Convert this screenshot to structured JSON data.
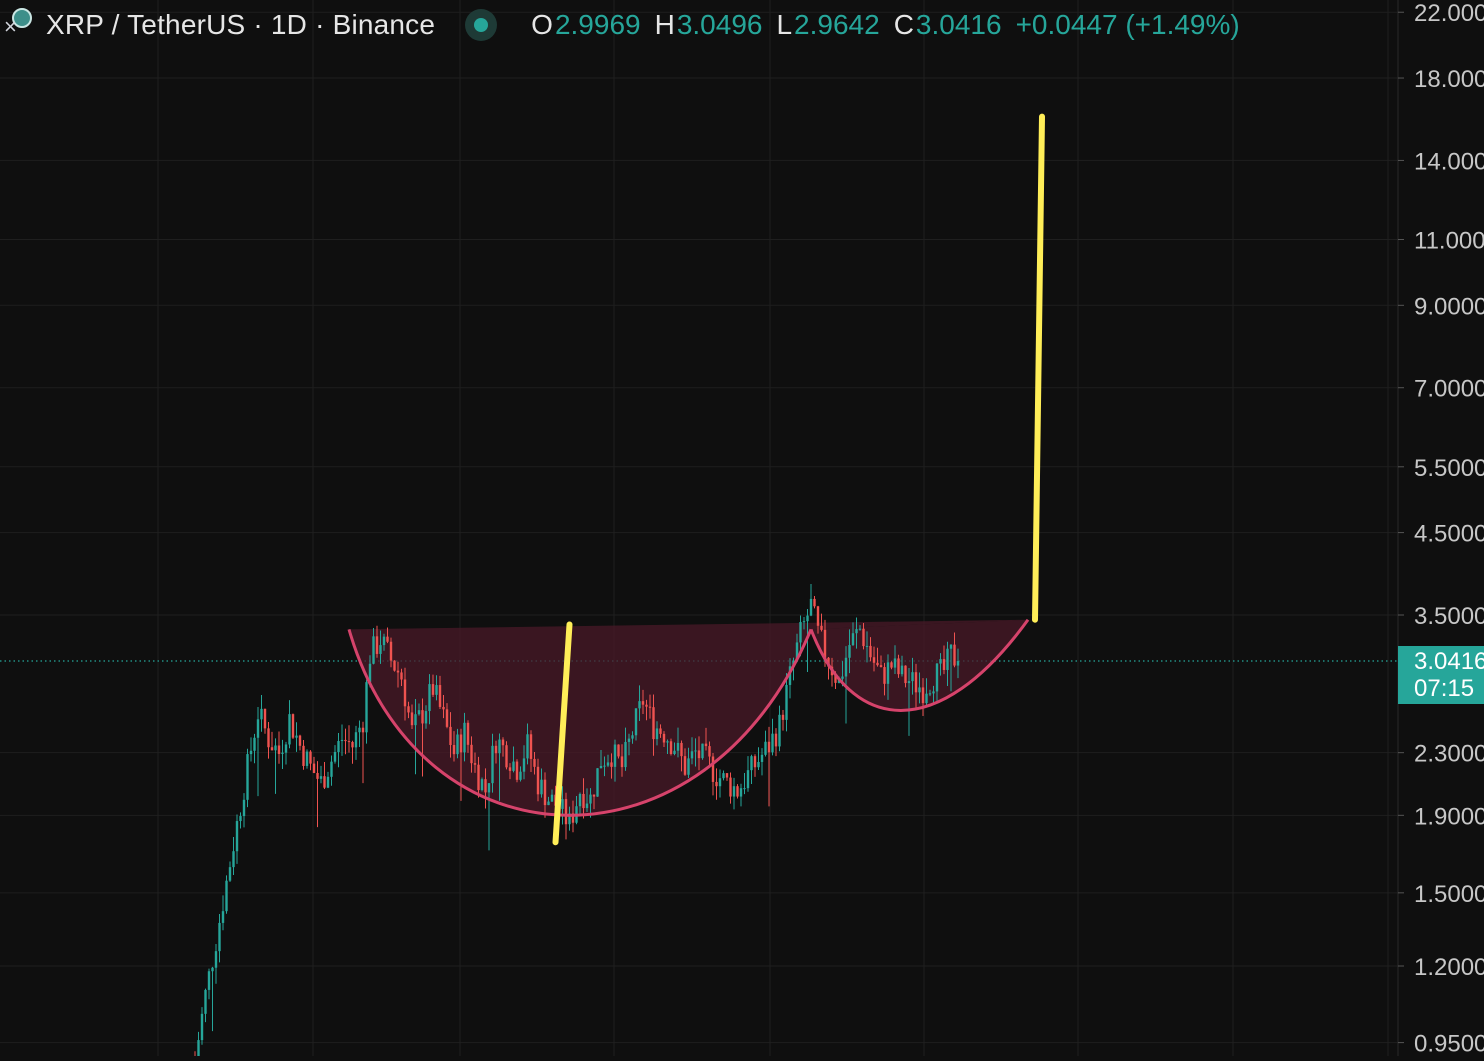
{
  "legend": {
    "symbol_title": "XRP / TetherUS · 1D · Binance",
    "open_label": "O",
    "open_value": "2.9969",
    "high_label": "H",
    "high_value": "3.0496",
    "low_label": "L",
    "low_value": "2.9642",
    "close_label": "C",
    "close_value": "3.0416",
    "change": "+0.0447 (+1.49%)"
  },
  "price_tag": {
    "price": "3.0416",
    "countdown": "07:15"
  },
  "colors": {
    "background": "#0f0f0f",
    "grid": "#1f1f1f",
    "up": "#26a69a",
    "down": "#ef5350",
    "cup_line": "#d6436b",
    "cup_fill": "#4a1a28",
    "projection": "#ffee58",
    "axis_text": "#c7c7c7"
  },
  "chart_data": {
    "type": "candlestick",
    "scale": "log",
    "y_axis": {
      "ticks": [
        "22.0000",
        "18.0000",
        "14.0000",
        "11.0000",
        "9.0000",
        "7.0000",
        "5.5000",
        "4.5000",
        "3.5000",
        "2.3000",
        "1.9000",
        "1.5000",
        "1.2000",
        "0.9500"
      ],
      "tick_values": [
        22,
        18,
        14,
        11,
        9,
        7,
        5.5,
        4.5,
        3.5,
        2.3,
        1.9,
        1.5,
        1.2,
        0.95
      ],
      "range": [
        0.9,
        24
      ]
    },
    "last_price": 3.0416,
    "series_anchors": [
      [
        0,
        0.9
      ],
      [
        3,
        1.1
      ],
      [
        6,
        1.3
      ],
      [
        9,
        1.55
      ],
      [
        12,
        1.85
      ],
      [
        15,
        2.2
      ],
      [
        18,
        2.6
      ],
      [
        21,
        2.4
      ],
      [
        24,
        2.3
      ],
      [
        27,
        2.55
      ],
      [
        30,
        2.35
      ],
      [
        33,
        2.2
      ],
      [
        36,
        2.1
      ],
      [
        39,
        2.25
      ],
      [
        42,
        2.4
      ],
      [
        45,
        2.35
      ],
      [
        48,
        2.55
      ],
      [
        50,
        3.1
      ],
      [
        53,
        3.25
      ],
      [
        56,
        3.05
      ],
      [
        59,
        2.9
      ],
      [
        62,
        2.45
      ],
      [
        65,
        2.6
      ],
      [
        68,
        2.8
      ],
      [
        71,
        2.55
      ],
      [
        74,
        2.3
      ],
      [
        77,
        2.45
      ],
      [
        80,
        2.2
      ],
      [
        83,
        2.05
      ],
      [
        86,
        2.4
      ],
      [
        89,
        2.3
      ],
      [
        92,
        2.2
      ],
      [
        95,
        2.35
      ],
      [
        98,
        2.1
      ],
      [
        101,
        2.0
      ],
      [
        104,
        1.95
      ],
      [
        107,
        1.85
      ],
      [
        110,
        2.05
      ],
      [
        113,
        2.0
      ],
      [
        116,
        2.25
      ],
      [
        119,
        2.3
      ],
      [
        122,
        2.2
      ],
      [
        125,
        2.45
      ],
      [
        128,
        2.7
      ],
      [
        131,
        2.5
      ],
      [
        134,
        2.45
      ],
      [
        137,
        2.35
      ],
      [
        140,
        2.2
      ],
      [
        143,
        2.3
      ],
      [
        146,
        2.25
      ],
      [
        149,
        2.15
      ],
      [
        152,
        2.1
      ],
      [
        155,
        2.05
      ],
      [
        158,
        2.15
      ],
      [
        161,
        2.25
      ],
      [
        164,
        2.35
      ],
      [
        167,
        2.5
      ],
      [
        170,
        2.9
      ],
      [
        173,
        3.3
      ],
      [
        176,
        3.6
      ],
      [
        178,
        3.3
      ],
      [
        181,
        3.05
      ],
      [
        184,
        2.85
      ],
      [
        187,
        3.2
      ],
      [
        190,
        3.35
      ],
      [
        193,
        3.1
      ],
      [
        196,
        2.9
      ],
      [
        199,
        3.0
      ],
      [
        202,
        2.9
      ],
      [
        205,
        2.85
      ],
      [
        208,
        2.8
      ],
      [
        211,
        2.9
      ],
      [
        214,
        2.95
      ],
      [
        216,
        3.1
      ],
      [
        218,
        3.04
      ]
    ],
    "cup_and_handle": {
      "rim_left": [
        44,
        3.35
      ],
      "rim_right": [
        238,
        3.45
      ],
      "cup_bottom": [
        103,
        1.75
      ],
      "cup_end": [
        176,
        3.35
      ],
      "handle_bottom": [
        207,
        2.75
      ]
    },
    "projections": [
      {
        "from": [
          103,
          1.75
        ],
        "to": [
          107,
          3.4
        ]
      },
      {
        "from": [
          240,
          3.45
        ],
        "to": [
          242,
          16.0
        ]
      }
    ]
  }
}
